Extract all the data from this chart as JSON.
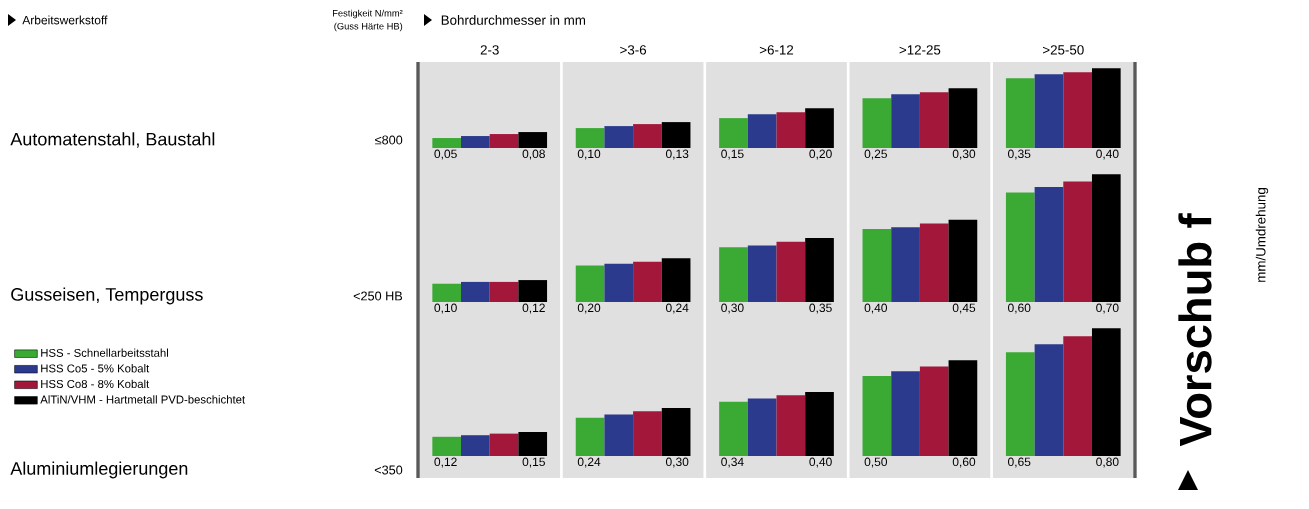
{
  "chart_data": [
    {
      "type": "bar",
      "ylabel": "Automatenstahl, Baustahl",
      "subtitle": "≤800",
      "xlabel": "Bohrdurchmesser in mm",
      "annotations": [
        "Arbeitswerkstoff",
        "Festigkeit N/mm²",
        "(Guss Härte HB)"
      ],
      "categories": [
        "2-3",
        ">3-6",
        ">6-12",
        ">12-25",
        ">25-50"
      ],
      "tick_labels": "x",
      "grid": "x",
      "series": [
        {
          "color": "#3aaa35",
          "values": [
            0.05,
            0.1,
            0.15,
            0.25,
            0.35
          ],
          "value_labels": [
            "0,05",
            "0,10",
            "0,15",
            "0,25",
            "0,35"
          ]
        },
        {
          "color": "#2b3a8c",
          "values": [
            0.06,
            0.11,
            0.17,
            0.27,
            0.37
          ]
        },
        {
          "color": "#a3173a",
          "values": [
            0.07,
            0.12,
            0.18,
            0.28,
            0.38
          ]
        },
        {
          "color": "#000000",
          "values": [
            0.08,
            0.13,
            0.2,
            0.3,
            0.4
          ],
          "value_labels": [
            "0,08",
            "0,13",
            "0,20",
            "0,30",
            "0,40"
          ]
        }
      ]
    },
    {
      "type": "bar",
      "ylabel": "Gusseisen, Temperguss",
      "subtitle": "<250 HB",
      "categories": [
        null,
        null,
        null,
        null,
        null
      ],
      "tick_labels": false,
      "grid": "x",
      "series": [
        {
          "color": "#3aaa35",
          "values": [
            0.1,
            0.2,
            0.3,
            0.4,
            0.6
          ],
          "value_labels": [
            "0,10",
            "0,20",
            "0,30",
            "0,40",
            "0,60"
          ]
        },
        {
          "color": "#2b3a8c",
          "values": [
            0.11,
            0.21,
            0.31,
            0.41,
            0.63
          ]
        },
        {
          "color": "#a3173a",
          "values": [
            0.11,
            0.22,
            0.33,
            0.43,
            0.66
          ]
        },
        {
          "color": "#000000",
          "values": [
            0.12,
            0.24,
            0.35,
            0.45,
            0.7
          ],
          "value_labels": [
            "0,12",
            "0,24",
            "0,35",
            "0,45",
            "0,70"
          ]
        }
      ]
    },
    {
      "type": "bar",
      "ylabel": "Aluminiumlegierungen",
      "subtitle": "<350",
      "annotations": [
        "Vorschub f",
        "mm/Umdrehung"
      ],
      "legend": "left",
      "categories": [
        null,
        null,
        null,
        null,
        null
      ],
      "tick_labels": false,
      "grid": "x",
      "series": [
        {
          "name": "HSS - Schnellarbeitsstahl",
          "color": "#3aaa35",
          "values": [
            0.12,
            0.24,
            0.34,
            0.5,
            0.65
          ],
          "value_labels": [
            "0,12",
            "0,24",
            "0,34",
            "0,50",
            "0,65"
          ]
        },
        {
          "name": "HSS Co5 - 5% Kobalt",
          "color": "#2b3a8c",
          "values": [
            0.13,
            0.26,
            0.36,
            0.53,
            0.7
          ]
        },
        {
          "name": "HSS Co8 - 8% Kobalt",
          "color": "#a3173a",
          "values": [
            0.14,
            0.28,
            0.38,
            0.56,
            0.75
          ]
        },
        {
          "name": "AlTiN/VHM - Hartmetall PVD-beschichtet",
          "color": "#000000",
          "values": [
            0.15,
            0.3,
            0.4,
            0.6,
            0.8
          ],
          "value_labels": [
            "0,15",
            "0,30",
            "0,40",
            "0,60",
            "0,80"
          ]
        }
      ]
    }
  ]
}
